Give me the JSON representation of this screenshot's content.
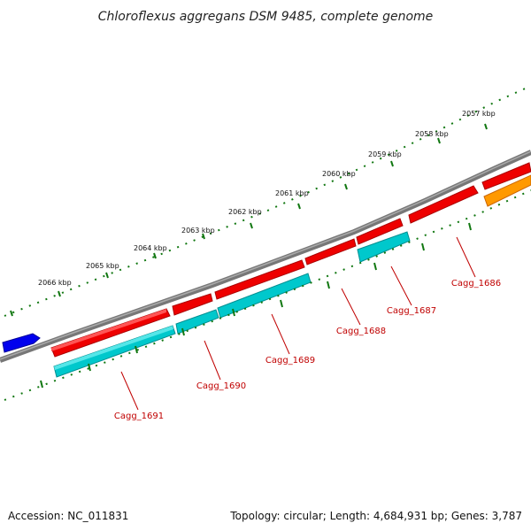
{
  "title": "Chloroflexus aggregans DSM 9485, complete genome",
  "footer": {
    "accession": "Accession: NC_011831",
    "summary": "Topology: circular; Length: 4,684,931 bp; Genes: 3,787"
  },
  "kbp_labels": [
    "2057 kbp",
    "2058 kbp",
    "2059 kbp",
    "2060 kbp",
    "2061 kbp",
    "2062 kbp",
    "2063 kbp",
    "2064 kbp",
    "2065 kbp",
    "2066 kbp"
  ],
  "gene_labels": [
    "Cagg_1686",
    "Cagg_1687",
    "Cagg_1688",
    "Cagg_1689",
    "Cagg_1690",
    "Cagg_1691"
  ],
  "colors": {
    "backbone": "#777777",
    "cds_red": "#ee0000",
    "cds_cyan": "#00c8cc",
    "blue_feature": "#0000ee",
    "orange_feature": "#ff9900",
    "tick_green": "#117711",
    "label_red": "#c00000"
  }
}
